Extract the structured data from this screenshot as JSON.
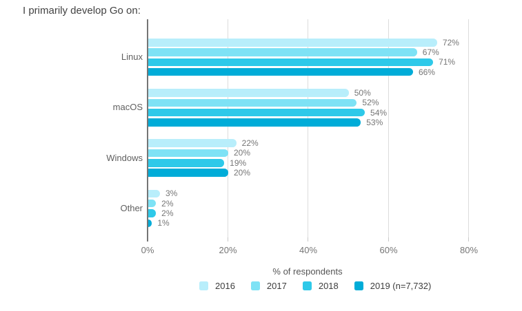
{
  "title": "I primarily develop Go on:",
  "chart_data": {
    "type": "bar",
    "orientation": "horizontal",
    "title": "I primarily develop Go on:",
    "xlabel": "% of respondents",
    "ylabel": "",
    "categories": [
      "Linux",
      "macOS",
      "Windows",
      "Other"
    ],
    "series": [
      {
        "name": "2016",
        "color": "#b8eefb",
        "values": [
          72,
          50,
          22,
          3
        ]
      },
      {
        "name": "2017",
        "color": "#7ee2f5",
        "values": [
          67,
          52,
          20,
          2
        ]
      },
      {
        "name": "2018",
        "color": "#2ec9e9",
        "values": [
          71,
          54,
          19,
          2
        ]
      },
      {
        "name": "2019 (n=7,732)",
        "color": "#00acd8",
        "values": [
          66,
          53,
          20,
          1
        ]
      }
    ],
    "value_suffix": "%",
    "x_ticks": [
      "0%",
      "20%",
      "40%",
      "60%",
      "80%"
    ],
    "x_tick_values": [
      0,
      20,
      40,
      60,
      80
    ],
    "xlim": [
      0,
      80
    ],
    "grid": true,
    "legend_position": "bottom"
  },
  "colors": {
    "background": "#ffffff",
    "axis": "#757575",
    "gridline": "#dcdcdc",
    "tick": "#c9c9c9",
    "tick_label": "#757575",
    "value_label": "#757575",
    "category_label": "#5f5f5f",
    "title": "#424242",
    "axis_title": "#545454",
    "legend_label": "#3d3d3d"
  }
}
